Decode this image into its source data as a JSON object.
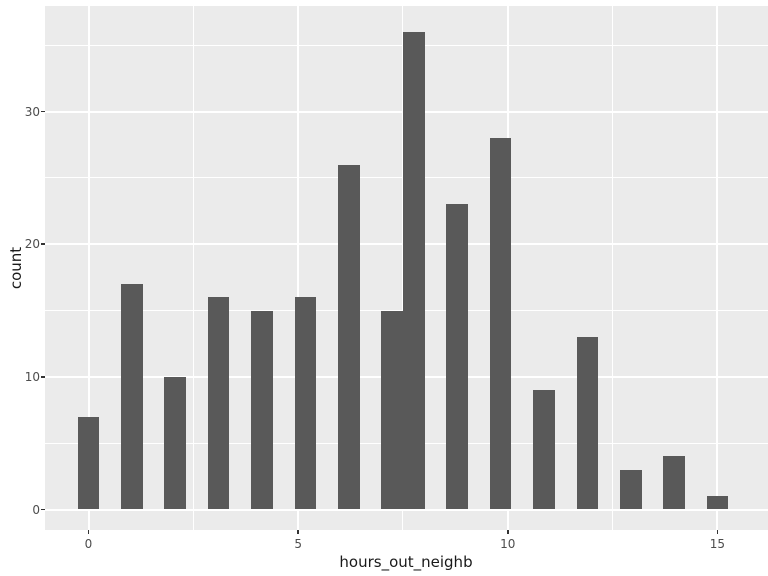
{
  "chart_data": {
    "type": "bar",
    "subtype": "histogram",
    "title": "",
    "xlabel": "hours_out_neighb",
    "ylabel": "count",
    "x": [
      0,
      1.034,
      2.069,
      3.103,
      4.138,
      5.172,
      6.207,
      7.241,
      7.759,
      8.793,
      9.828,
      10.862,
      11.897,
      12.931,
      13.966,
      15.0
    ],
    "values": [
      7,
      17,
      10,
      16,
      15,
      16,
      26,
      15,
      36,
      23,
      28,
      9,
      13,
      3,
      4,
      1
    ],
    "bin_width": 0.517,
    "x_ticks": [
      0,
      5,
      10,
      15
    ],
    "x_tick_labels": [
      "0",
      "5",
      "10",
      "15"
    ],
    "y_ticks": [
      0,
      10,
      20,
      30
    ],
    "y_tick_labels": [
      "0",
      "10",
      "20",
      "30"
    ],
    "x_minor_ticks": [
      2.5,
      7.5,
      12.5
    ],
    "y_minor_ticks": [
      5,
      15,
      25,
      35
    ],
    "xlim": [
      -1.04,
      16.21
    ],
    "ylim": [
      -1.55,
      37.95
    ],
    "grid": "major+minor",
    "legend": "none",
    "colors": {
      "panel_background": "#EBEBEB",
      "bar_fill": "#595959",
      "gridline": "#FFFFFF",
      "tick_mark": "#333333",
      "tick_label": "#4D4D4D",
      "axis_title": "#1A1A1A",
      "figure_background": "#FFFFFF"
    }
  }
}
